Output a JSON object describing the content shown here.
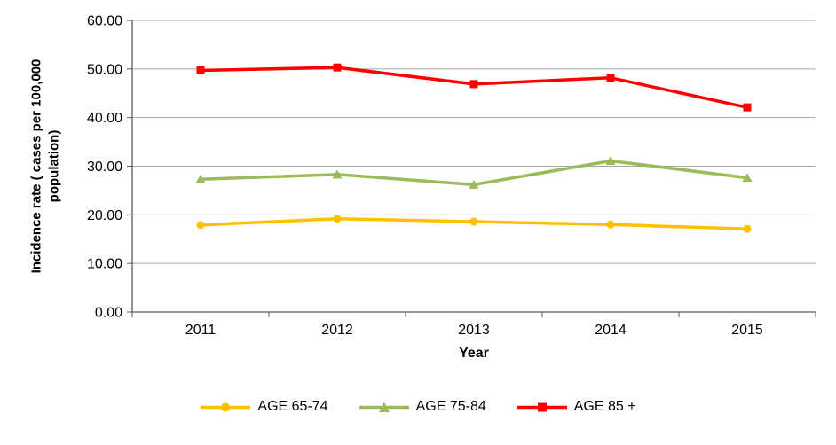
{
  "chart_data": {
    "type": "line",
    "title": "",
    "xlabel": "Year",
    "ylabel": "Incidence rate ( cases per 100,000 population)",
    "categories": [
      "2011",
      "2012",
      "2013",
      "2014",
      "2015"
    ],
    "y_ticks": [
      "0.00",
      "10.00",
      "20.00",
      "30.00",
      "40.00",
      "50.00",
      "60.00"
    ],
    "ylim": [
      0,
      60
    ],
    "grid": true,
    "legend_position": "bottom",
    "colors": {
      "gridline": "#A6A6A6",
      "axis": "#595959",
      "text": "#000000"
    },
    "series": [
      {
        "name": "AGE 65-74",
        "color": "#FFC000",
        "marker": "circle",
        "values": [
          17.9,
          19.2,
          18.6,
          18.0,
          17.1
        ]
      },
      {
        "name": "AGE 75-84",
        "color": "#9BBB59",
        "marker": "triangle",
        "values": [
          27.3,
          28.3,
          26.2,
          31.1,
          27.6
        ]
      },
      {
        "name": "AGE 85 +",
        "color": "#FF0000",
        "marker": "square",
        "values": [
          49.7,
          50.3,
          46.9,
          48.2,
          42.1
        ]
      }
    ]
  }
}
